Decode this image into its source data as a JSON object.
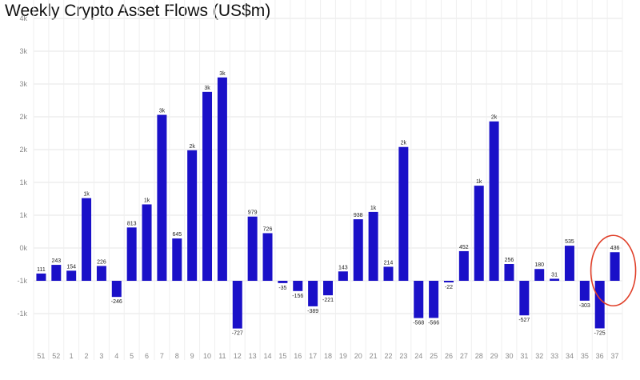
{
  "chart_data": {
    "type": "bar",
    "title": "Weekly Crypto Asset Flows (US$m)",
    "xlabel": "",
    "ylabel": "",
    "categories": [
      "51",
      "52",
      "1",
      "2",
      "3",
      "4",
      "5",
      "6",
      "7",
      "8",
      "9",
      "10",
      "11",
      "12",
      "13",
      "14",
      "15",
      "16",
      "17",
      "18",
      "19",
      "20",
      "21",
      "22",
      "23",
      "24",
      "25",
      "26",
      "27",
      "28",
      "29",
      "30",
      "31",
      "32",
      "33",
      "34",
      "35",
      "36",
      "37"
    ],
    "values": [
      111,
      243,
      154,
      1260,
      226,
      -246,
      813,
      1165,
      2530,
      645,
      1990,
      2880,
      3100,
      -727,
      979,
      726,
      -35,
      -156,
      -389,
      -221,
      143,
      938,
      1050,
      214,
      2040,
      -568,
      -566,
      -22,
      452,
      1450,
      2430,
      256,
      -527,
      180,
      31,
      535,
      -303,
      -725,
      436
    ],
    "data_labels": [
      "111",
      "243",
      "154",
      "1k",
      "226",
      "-246",
      "813",
      "1k",
      "3k",
      "645",
      "2k",
      "3k",
      "3k",
      "-727",
      "979",
      "726",
      "-35",
      "-156",
      "-389",
      "-221",
      "143",
      "938",
      "1k",
      "214",
      "2k",
      "-568",
      "-566",
      "-22",
      "452",
      "1k",
      "2k",
      "256",
      "-527",
      "180",
      "31",
      "535",
      "-303",
      "-725",
      "436"
    ],
    "y_tick_labels": [
      "4k",
      "3k",
      "3k",
      "2k",
      "2k",
      "1k",
      "1k",
      "0k",
      "-1k",
      "-1k"
    ],
    "ylim": [
      -1000,
      3500
    ],
    "grid": true,
    "bar_color": "#1a10c8",
    "annotation": {
      "type": "circle",
      "target_category": "37",
      "color": "#e0402a"
    }
  }
}
